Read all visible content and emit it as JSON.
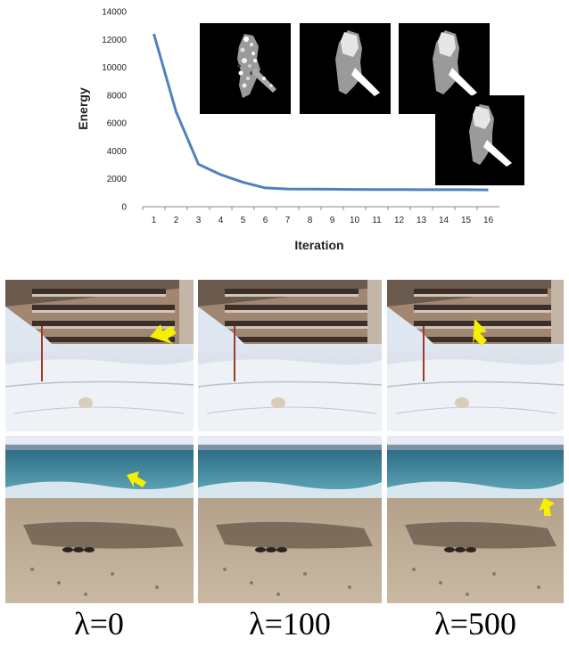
{
  "chart_data": {
    "type": "line",
    "x": [
      1,
      2,
      3,
      4,
      5,
      6,
      7,
      8,
      9,
      10,
      11,
      12,
      13,
      14,
      15,
      16
    ],
    "series": [
      {
        "values": [
          12400,
          6800,
          3050,
          2300,
          1750,
          1350,
          1270,
          1260,
          1250,
          1240,
          1230,
          1230,
          1220,
          1220,
          1220,
          1210
        ]
      }
    ],
    "xlabel": "Iteration",
    "ylabel": "Energy",
    "ylim": [
      0,
      14000
    ],
    "yticks": [
      0,
      2000,
      4000,
      6000,
      8000,
      10000,
      12000,
      14000
    ],
    "xticks": [
      1,
      2,
      3,
      4,
      5,
      6,
      7,
      8,
      9,
      10,
      11,
      12,
      13,
      14,
      15,
      16
    ],
    "grid": false,
    "line_color": "#4f81bd"
  },
  "insets": [
    {
      "name": "inset-iteration-a"
    },
    {
      "name": "inset-iteration-b"
    },
    {
      "name": "inset-iteration-c"
    },
    {
      "name": "inset-iteration-d"
    }
  ],
  "photo_grid": {
    "rows": [
      "snow-building",
      "beach"
    ],
    "arrow_color": "#f5f000"
  },
  "labels": [
    "λ=0",
    "λ=100",
    "λ=500"
  ]
}
